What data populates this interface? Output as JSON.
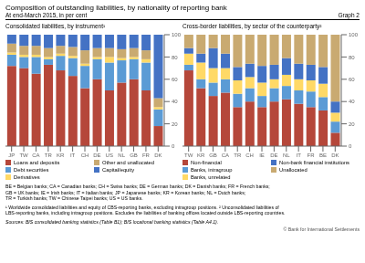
{
  "title": "Composition of outstanding liabilities, by nationality of reporting bank",
  "subtitle": "At end-March 2015, in per cent",
  "annotations": [
    "Graph 2",
    "BE = Belgian banks; CA = Canadian banks; CH = Swiss banks; DE = German banks; DK = Danish banks; FR = French banks;\nGB = UK banks; IE = Irish banks; IT = Italian banks; JP = Japanese banks; KR = Korean banks; NL = Dutch banks;\nTR = Turkish banks; TW = Chinese Taipei banks; US = US banks.",
    "¹ Worldwide consolidated liabilities and equity of CBS-reporting banks, excluding intragroup positions.  ² Unconsolidated liabilities of\nLBS-reporting banks, including intragroup positions. Excludes the liabilities of banking offices located outside LBS-reporting countries.",
    "Sources: BIS consolidated banking statistics (Table B1); BIS locational banking statistics (Table A4.1).",
    "© Bank for International Settlements"
  ],
  "chart_data": [
    {
      "type": "bar",
      "stacked": true,
      "title": "Consolidated liabilities, by instrument¹",
      "categories": [
        "JP",
        "TW",
        "CA",
        "TR",
        "KR",
        "IT",
        "CH",
        "DE",
        "US",
        "NL",
        "GB",
        "FR",
        "DK"
      ],
      "series": [
        {
          "name": "Loans and deposits",
          "color": "#b5473a",
          "values": [
            72,
            70,
            65,
            73,
            68,
            63,
            52,
            60,
            50,
            57,
            60,
            50,
            18
          ]
        },
        {
          "name": "Debt securities",
          "color": "#5b9bd5",
          "values": [
            10,
            10,
            15,
            5,
            13,
            16,
            20,
            18,
            25,
            20,
            18,
            25,
            15
          ]
        },
        {
          "name": "Derivatives",
          "color": "#ffd966",
          "values": [
            2,
            2,
            2,
            2,
            2,
            2,
            2,
            2,
            5,
            2,
            2,
            3,
            2
          ]
        },
        {
          "name": "Other and unallocated",
          "color": "#c9aa71",
          "values": [
            8,
            8,
            8,
            8,
            7,
            8,
            12,
            8,
            8,
            8,
            8,
            8,
            8
          ]
        },
        {
          "name": "Capital/equity",
          "color": "#4472c4",
          "values": [
            8,
            10,
            10,
            12,
            10,
            11,
            14,
            12,
            12,
            13,
            12,
            14,
            57
          ]
        }
      ],
      "ylim": [
        0,
        100
      ],
      "yticks": [
        0,
        20,
        40,
        60,
        80,
        100
      ],
      "grid": false
    },
    {
      "type": "bar",
      "stacked": true,
      "title": "Cross-border liabilities, by sector of the counterparty²",
      "categories": [
        "TW",
        "KR",
        "GB",
        "CA",
        "TR",
        "CH",
        "IE",
        "DE",
        "NL",
        "IT",
        "FR",
        "BE",
        "DK"
      ],
      "series": [
        {
          "name": "Non-financial",
          "color": "#b5473a",
          "values": [
            68,
            52,
            45,
            48,
            35,
            40,
            35,
            40,
            42,
            38,
            35,
            32,
            12
          ]
        },
        {
          "name": "Banks, intragroup",
          "color": "#5b9bd5",
          "values": [
            5,
            8,
            12,
            12,
            12,
            12,
            10,
            12,
            12,
            12,
            14,
            12,
            10
          ]
        },
        {
          "name": "Banks, unrelated",
          "color": "#ffd966",
          "values": [
            10,
            15,
            13,
            10,
            12,
            10,
            12,
            8,
            10,
            10,
            10,
            12,
            8
          ]
        },
        {
          "name": "Non-bank financial institutions",
          "color": "#4472c4",
          "values": [
            5,
            8,
            18,
            13,
            12,
            12,
            15,
            13,
            15,
            14,
            14,
            15,
            10
          ]
        },
        {
          "name": "Unallocated",
          "color": "#c9aa71",
          "values": [
            12,
            17,
            12,
            17,
            29,
            26,
            28,
            27,
            21,
            26,
            27,
            29,
            60
          ]
        }
      ],
      "ylim": [
        0,
        100
      ],
      "yticks": [
        0,
        20,
        40,
        60,
        80,
        100
      ],
      "grid": false
    }
  ]
}
